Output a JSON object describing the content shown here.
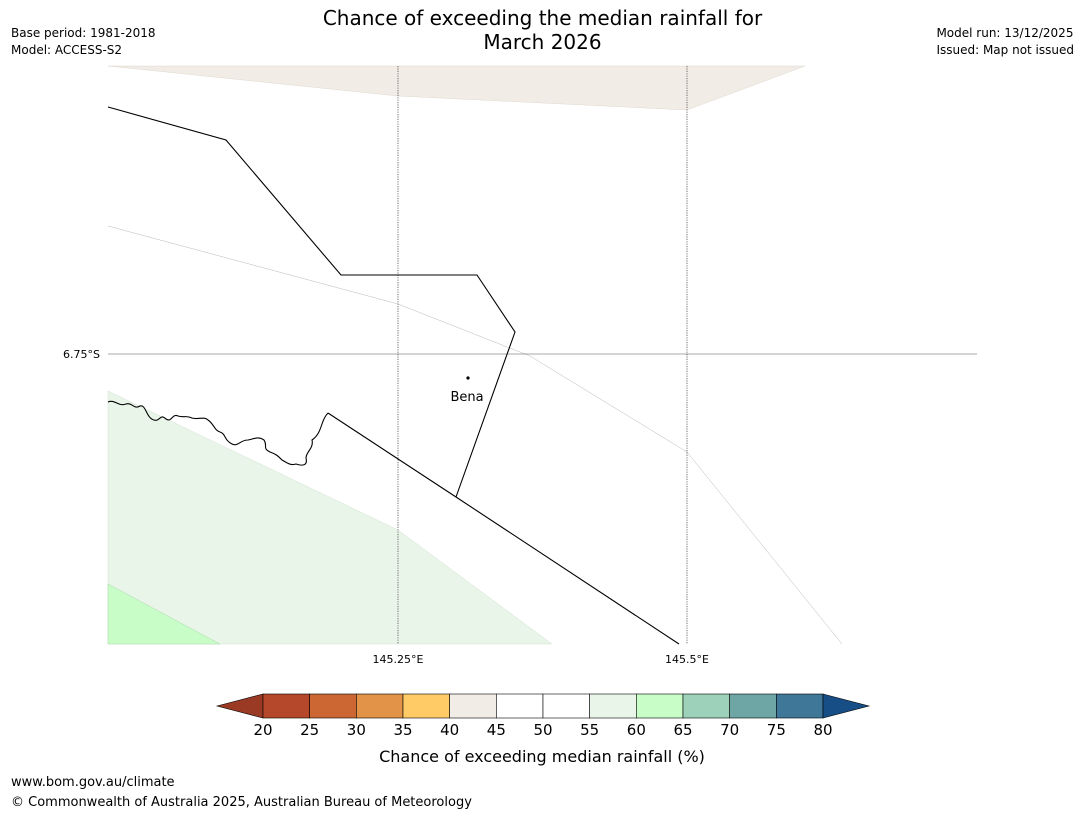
{
  "title_line1": "Chance of exceeding the median rainfall for",
  "title_line2": "March 2026",
  "meta_left": {
    "base_period": "Base period: 1981-2018",
    "model": "Model: ACCESS-S2"
  },
  "meta_right": {
    "model_run": "Model run: 13/12/2025",
    "issued": "Issued: Map not issued"
  },
  "map": {
    "lat_label": "6.75°S",
    "lon_labels": [
      "145.25°E",
      "145.5°E"
    ],
    "place": "Bena"
  },
  "legend": {
    "title": "Chance of exceeding median rainfall (%)",
    "ticks": [
      "20",
      "25",
      "30",
      "35",
      "40",
      "45",
      "50",
      "55",
      "60",
      "65",
      "70",
      "75",
      "80"
    ],
    "colors": [
      "#9a3a24",
      "#b5472a",
      "#cc6633",
      "#e29347",
      "#fecb67",
      "#f1ece5",
      "#ffffff",
      "#ffffff",
      "#eaf5e9",
      "#c8fdc8",
      "#9dd1b9",
      "#6ea5a5",
      "#3f7799",
      "#184e86"
    ]
  },
  "footer": {
    "url": "www.bom.gov.au/climate",
    "copyright": "© Commonwealth of Australia 2025, Australian Bureau of Meteorology"
  }
}
